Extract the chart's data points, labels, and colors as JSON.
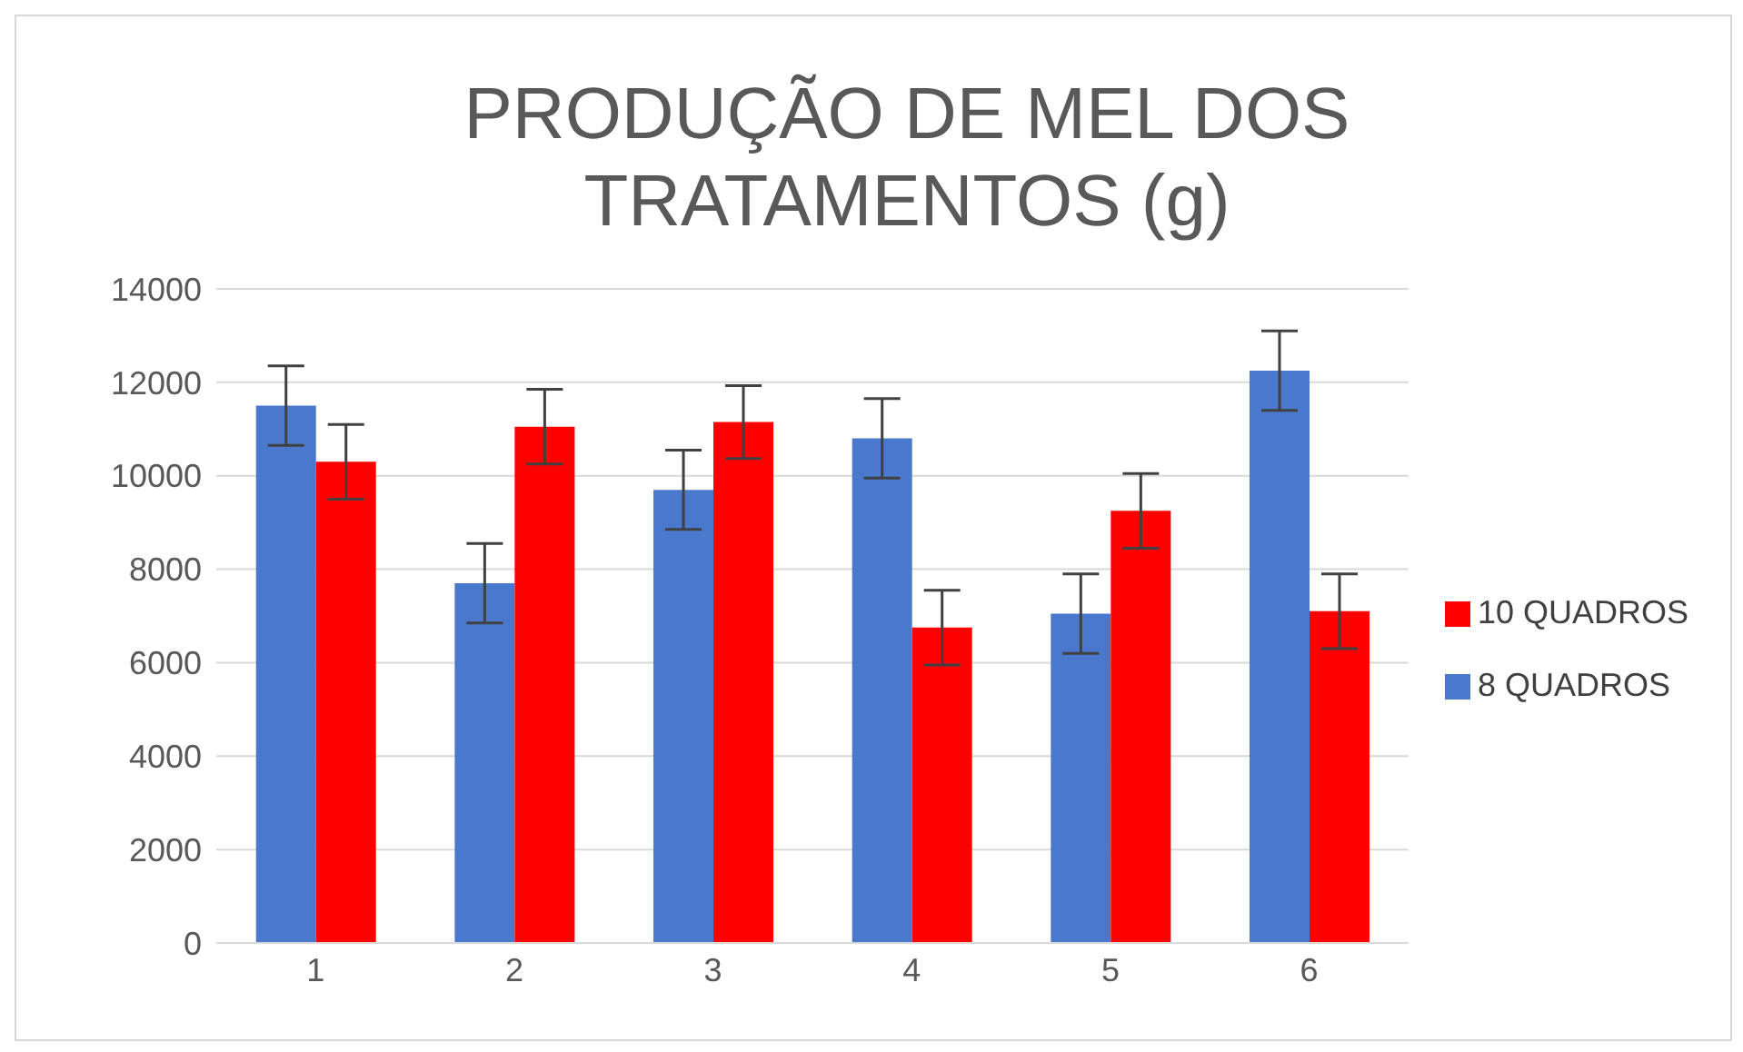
{
  "chart_data": {
    "type": "bar",
    "title": "PRODUÇÃO DE MEL DOS TRATAMENTOS (g)",
    "categories": [
      "1",
      "2",
      "3",
      "4",
      "5",
      "6"
    ],
    "series": [
      {
        "name": "8 QUADROS",
        "color": "#4a78cc",
        "values": [
          11500,
          7700,
          9700,
          10800,
          7050,
          12250
        ],
        "errors": [
          850,
          850,
          850,
          850,
          850,
          850
        ]
      },
      {
        "name": "10 QUADROS",
        "color": "#ff0000",
        "values": [
          10300,
          11050,
          11150,
          6750,
          9250,
          7100
        ],
        "errors": [
          800,
          800,
          780,
          800,
          800,
          800
        ]
      }
    ],
    "ylim": [
      0,
      14000
    ],
    "yticks": [
      0,
      2000,
      4000,
      6000,
      8000,
      10000,
      12000,
      14000
    ],
    "grid": "y",
    "legend": "right"
  }
}
